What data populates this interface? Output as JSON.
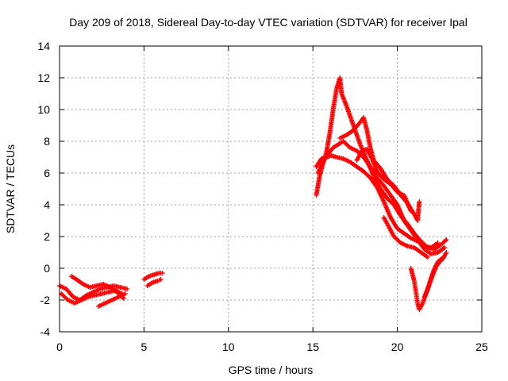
{
  "chart_data": {
    "type": "scatter",
    "title": "Day 209 of 2018, Sidereal Day-to-day VTEC variation (SDTVAR) for receiver Ipal",
    "xlabel": "GPS time / hours",
    "ylabel": "SDTVAR / TECUs",
    "xlim": [
      0,
      25
    ],
    "ylim": [
      -4,
      14
    ],
    "xticks": [
      0,
      5,
      10,
      15,
      20,
      25
    ],
    "yticks": [
      -4,
      -2,
      0,
      2,
      4,
      6,
      8,
      10,
      12,
      14
    ],
    "grid": true,
    "marker": "+",
    "series": [
      {
        "name": "SDTVAR",
        "color": "#ff0000",
        "tracks": [
          [
            [
              0.0,
              -1.1
            ],
            [
              0.4,
              -1.3
            ],
            [
              0.8,
              -1.8
            ],
            [
              1.2,
              -2.0
            ],
            [
              1.6,
              -1.7
            ],
            [
              2.0,
              -1.5
            ],
            [
              2.4,
              -1.3
            ],
            [
              2.8,
              -1.2
            ],
            [
              3.2,
              -1.1
            ],
            [
              3.6,
              -1.2
            ],
            [
              4.0,
              -1.3
            ]
          ],
          [
            [
              0.1,
              -1.6
            ],
            [
              0.5,
              -2.0
            ],
            [
              0.9,
              -2.2
            ],
            [
              1.3,
              -2.0
            ],
            [
              1.7,
              -1.8
            ],
            [
              2.1,
              -1.7
            ],
            [
              2.5,
              -1.6
            ],
            [
              2.9,
              -1.5
            ],
            [
              3.3,
              -1.4
            ],
            [
              3.7,
              -1.6
            ]
          ],
          [
            [
              0.7,
              -0.5
            ],
            [
              1.0,
              -0.7
            ],
            [
              1.4,
              -1.0
            ],
            [
              1.8,
              -1.2
            ],
            [
              2.2,
              -1.1
            ],
            [
              2.6,
              -1.0
            ],
            [
              3.0,
              -1.2
            ],
            [
              3.4,
              -1.5
            ],
            [
              3.8,
              -1.9
            ]
          ],
          [
            [
              2.3,
              -2.4
            ],
            [
              2.7,
              -2.2
            ],
            [
              3.1,
              -2.0
            ],
            [
              3.5,
              -1.8
            ],
            [
              3.9,
              -1.6
            ]
          ],
          [
            [
              5.0,
              -0.7
            ],
            [
              5.3,
              -0.5
            ],
            [
              5.6,
              -0.4
            ],
            [
              5.9,
              -0.3
            ],
            [
              6.1,
              -0.3
            ]
          ],
          [
            [
              5.2,
              -1.1
            ],
            [
              5.5,
              -0.9
            ],
            [
              5.8,
              -0.8
            ],
            [
              6.0,
              -0.7
            ]
          ],
          [
            [
              15.2,
              4.6
            ],
            [
              15.4,
              5.8
            ],
            [
              15.6,
              6.6
            ],
            [
              15.8,
              7.3
            ],
            [
              16.0,
              8.5
            ],
            [
              16.2,
              10.0
            ],
            [
              16.4,
              11.3
            ],
            [
              16.6,
              12.0
            ],
            [
              16.7,
              11.0
            ],
            [
              17.0,
              10.2
            ],
            [
              17.4,
              9.0
            ],
            [
              17.8,
              7.8
            ],
            [
              18.2,
              6.8
            ],
            [
              18.6,
              5.8
            ],
            [
              19.0,
              5.0
            ],
            [
              19.4,
              4.4
            ],
            [
              19.8,
              4.0
            ],
            [
              20.2,
              3.3
            ],
            [
              20.6,
              2.8
            ],
            [
              21.0,
              2.2
            ],
            [
              21.4,
              1.7
            ],
            [
              21.8,
              1.3
            ],
            [
              22.2,
              1.2
            ],
            [
              22.6,
              1.5
            ],
            [
              22.9,
              1.8
            ]
          ],
          [
            [
              15.3,
              6.0
            ],
            [
              15.6,
              6.7
            ],
            [
              15.9,
              7.2
            ],
            [
              16.2,
              7.6
            ],
            [
              16.5,
              7.8
            ],
            [
              16.8,
              8.0
            ],
            [
              17.2,
              7.6
            ],
            [
              17.6,
              7.4
            ],
            [
              18.0,
              7.0
            ],
            [
              18.4,
              6.4
            ],
            [
              18.8,
              5.7
            ],
            [
              19.2,
              5.2
            ],
            [
              19.6,
              4.6
            ],
            [
              20.0,
              4.0
            ],
            [
              20.4,
              3.0
            ],
            [
              20.8,
              2.4
            ],
            [
              21.2,
              1.8
            ],
            [
              21.6,
              1.2
            ],
            [
              22.0,
              0.9
            ],
            [
              22.4,
              1.0
            ],
            [
              22.8,
              1.3
            ]
          ],
          [
            [
              15.2,
              6.4
            ],
            [
              15.5,
              6.9
            ],
            [
              15.8,
              7.0
            ],
            [
              16.1,
              7.1
            ],
            [
              16.4,
              7.0
            ],
            [
              16.8,
              6.9
            ],
            [
              17.2,
              6.7
            ],
            [
              17.6,
              6.4
            ],
            [
              18.0,
              6.1
            ],
            [
              18.4,
              5.7
            ],
            [
              18.8,
              5.1
            ],
            [
              19.2,
              4.2
            ],
            [
              19.6,
              3.2
            ],
            [
              20.0,
              2.5
            ],
            [
              20.4,
              2.2
            ],
            [
              20.8,
              1.9
            ],
            [
              21.2,
              1.7
            ],
            [
              21.6,
              1.4
            ],
            [
              22.0,
              1.3
            ],
            [
              22.4,
              1.6
            ]
          ],
          [
            [
              16.6,
              8.2
            ],
            [
              17.0,
              8.4
            ],
            [
              17.4,
              8.7
            ],
            [
              17.8,
              9.2
            ],
            [
              18.0,
              9.5
            ],
            [
              18.2,
              8.7
            ],
            [
              18.4,
              7.6
            ],
            [
              18.6,
              6.8
            ],
            [
              19.0,
              6.3
            ],
            [
              19.4,
              5.6
            ],
            [
              19.8,
              5.2
            ],
            [
              20.2,
              4.6
            ],
            [
              20.6,
              4.1
            ],
            [
              21.0,
              3.4
            ],
            [
              21.2,
              3.0
            ],
            [
              21.3,
              4.2
            ]
          ],
          [
            [
              17.6,
              6.8
            ],
            [
              17.9,
              7.4
            ],
            [
              18.2,
              7.5
            ],
            [
              18.5,
              6.9
            ],
            [
              18.8,
              6.1
            ],
            [
              19.2,
              5.6
            ],
            [
              19.6,
              5.3
            ],
            [
              20.0,
              4.8
            ],
            [
              20.4,
              4.6
            ],
            [
              20.8,
              3.6
            ]
          ],
          [
            [
              19.2,
              3.2
            ],
            [
              19.5,
              2.6
            ],
            [
              19.8,
              2.0
            ],
            [
              20.2,
              1.6
            ],
            [
              20.6,
              1.4
            ],
            [
              21.0,
              1.3
            ],
            [
              21.4,
              1.0
            ],
            [
              21.8,
              0.7
            ]
          ],
          [
            [
              20.8,
              0.0
            ],
            [
              21.0,
              -0.8
            ],
            [
              21.1,
              -1.5
            ],
            [
              21.2,
              -2.2
            ],
            [
              21.3,
              -2.6
            ],
            [
              21.5,
              -2.2
            ],
            [
              21.7,
              -1.6
            ],
            [
              21.9,
              -1.0
            ],
            [
              22.1,
              -0.4
            ],
            [
              22.3,
              0.1
            ],
            [
              22.5,
              0.4
            ],
            [
              22.7,
              0.6
            ],
            [
              22.9,
              1.0
            ]
          ],
          [
            [
              21.6,
              -1.8
            ],
            [
              21.8,
              -1.3
            ],
            [
              22.0,
              -0.6
            ],
            [
              22.2,
              0.0
            ],
            [
              22.4,
              0.4
            ],
            [
              22.6,
              0.6
            ]
          ]
        ]
      }
    ]
  }
}
